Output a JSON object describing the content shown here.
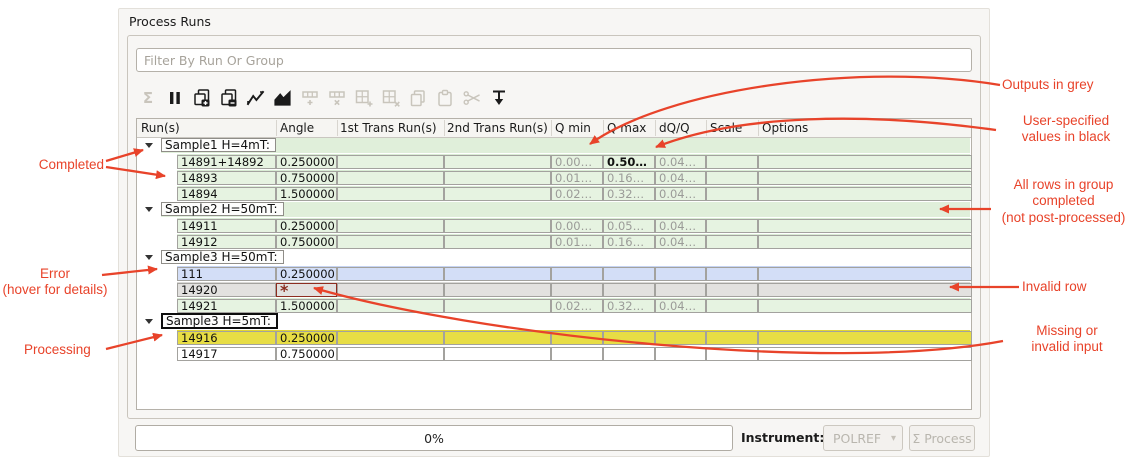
{
  "panel": {
    "title": "Process Runs"
  },
  "filter": {
    "placeholder": "Filter By Run Or Group"
  },
  "toolbar": {
    "icons": [
      {
        "name": "sigma-icon",
        "glyph": "Σ",
        "enabled": false
      },
      {
        "name": "pause-icon",
        "enabled": true
      },
      {
        "name": "add-group-icon",
        "enabled": true
      },
      {
        "name": "remove-group-icon",
        "enabled": true
      },
      {
        "name": "line-chart-icon",
        "enabled": true
      },
      {
        "name": "filled-chart-icon",
        "enabled": true
      },
      {
        "name": "add-row-icon",
        "enabled": false
      },
      {
        "name": "delete-row-icon",
        "enabled": false
      },
      {
        "name": "add-table-cell-icon",
        "enabled": false
      },
      {
        "name": "delete-table-cell-icon",
        "enabled": false
      },
      {
        "name": "copy-icon",
        "enabled": false
      },
      {
        "name": "paste-icon",
        "enabled": false
      },
      {
        "name": "cut-icon",
        "enabled": false
      },
      {
        "name": "transfer-icon",
        "enabled": true
      }
    ]
  },
  "table": {
    "columns": [
      "Run(s)",
      "Angle",
      "1st Trans Run(s)",
      "2nd Trans Run(s)",
      "Q min",
      "Q max",
      "dQ/Q",
      "Scale",
      "Options"
    ],
    "invalid_glyph": "*",
    "rows": [
      {
        "type": "group",
        "label": "Sample1 H=4mT:",
        "state": "completed",
        "current": false
      },
      {
        "type": "run",
        "state": "completed",
        "cells": {
          "run": "14891+14892",
          "angle": "0.250000",
          "t1": "",
          "t2": "",
          "qmin": "0.00…",
          "qmax": "0.50…",
          "dq": "0.04…",
          "scale": "",
          "options": ""
        },
        "value_styles": {
          "qmin": "output",
          "qmax": "user",
          "dq": "output"
        }
      },
      {
        "type": "run",
        "state": "completed",
        "cells": {
          "run": "14893",
          "angle": "0.750000",
          "t1": "",
          "t2": "",
          "qmin": "0.01…",
          "qmax": "0.16…",
          "dq": "0.04…",
          "scale": "",
          "options": ""
        },
        "value_styles": {
          "qmin": "output",
          "qmax": "output",
          "dq": "output"
        }
      },
      {
        "type": "run",
        "state": "completed",
        "cells": {
          "run": "14894",
          "angle": "1.500000",
          "t1": "",
          "t2": "",
          "qmin": "0.02…",
          "qmax": "0.32…",
          "dq": "0.04…",
          "scale": "",
          "options": ""
        },
        "value_styles": {
          "qmin": "output",
          "qmax": "output",
          "dq": "output"
        }
      },
      {
        "type": "group",
        "label": "Sample2 H=50mT:",
        "state": "completed",
        "current": false
      },
      {
        "type": "run",
        "state": "completed",
        "cells": {
          "run": "14911",
          "angle": "0.250000",
          "t1": "",
          "t2": "",
          "qmin": "0.00…",
          "qmax": "0.05…",
          "dq": "0.04…",
          "scale": "",
          "options": ""
        },
        "value_styles": {
          "qmin": "output",
          "qmax": "output",
          "dq": "output"
        }
      },
      {
        "type": "run",
        "state": "completed",
        "cells": {
          "run": "14912",
          "angle": "0.750000",
          "t1": "",
          "t2": "",
          "qmin": "0.01…",
          "qmax": "0.16…",
          "dq": "0.04…",
          "scale": "",
          "options": ""
        },
        "value_styles": {
          "qmin": "output",
          "qmax": "output",
          "dq": "output"
        }
      },
      {
        "type": "group",
        "label": "Sample3 H=50mT:",
        "state": "none",
        "current": false
      },
      {
        "type": "run",
        "state": "error",
        "cells": {
          "run": "111",
          "angle": "0.250000",
          "t1": "",
          "t2": "",
          "qmin": "",
          "qmax": "",
          "dq": "",
          "scale": "",
          "options": ""
        }
      },
      {
        "type": "run",
        "state": "invalid",
        "invalid_cell": "angle",
        "cells": {
          "run": "14920",
          "angle": "",
          "t1": "",
          "t2": "",
          "qmin": "",
          "qmax": "",
          "dq": "",
          "scale": "",
          "options": ""
        }
      },
      {
        "type": "run",
        "state": "completed",
        "cells": {
          "run": "14921",
          "angle": "1.500000",
          "t1": "",
          "t2": "",
          "qmin": "0.02…",
          "qmax": "0.32…",
          "dq": "0.04…",
          "scale": "",
          "options": ""
        },
        "value_styles": {
          "qmin": "output",
          "qmax": "output",
          "dq": "output"
        }
      },
      {
        "type": "group",
        "label": "Sample3 H=5mT:",
        "state": "none",
        "current": true
      },
      {
        "type": "run",
        "state": "processing",
        "cells": {
          "run": "14916",
          "angle": "0.250000",
          "t1": "",
          "t2": "",
          "qmin": "",
          "qmax": "",
          "dq": "",
          "scale": "",
          "options": ""
        }
      },
      {
        "type": "run",
        "state": "none",
        "cells": {
          "run": "14917",
          "angle": "0.750000",
          "t1": "",
          "t2": "",
          "qmin": "",
          "qmax": "",
          "dq": "",
          "scale": "",
          "options": ""
        }
      }
    ]
  },
  "footer": {
    "progress": "0%",
    "instrument_label": "Instrument:",
    "instrument_value": "POLREF",
    "combo_arrow_glyph": "▾",
    "process_label": "Σ Process"
  },
  "annotations": {
    "outputs": {
      "text": "Outputs in grey"
    },
    "user": {
      "text": "User-specified\nvalues in black"
    },
    "group_completed": {
      "text": "All rows in group\ncompleted\n(not post-processed)"
    },
    "invalid_row": {
      "text": "Invalid row"
    },
    "missing": {
      "text": "Missing or\ninvalid input"
    },
    "completed": {
      "text": "Completed"
    },
    "error": {
      "text": "Error\n(hover for details)"
    },
    "processing": {
      "text": "Processing"
    }
  },
  "colors": {
    "annotation_red": "#e8432a",
    "completed_band": "#d9ecd4",
    "completed_cell": "#e6f3e1",
    "group_completed_band": "#e0efda",
    "error_band": "#c6d4f3",
    "error_cell": "#d3def7",
    "invalid_band": "#d9d8d6",
    "invalid_cell": "#e2e1df",
    "processing_band": "#e2d631",
    "processing_cell": "#e7dd45",
    "invalid_marker": "#8c2d20",
    "output_text": "#9b9b98",
    "user_text": "#111111"
  }
}
